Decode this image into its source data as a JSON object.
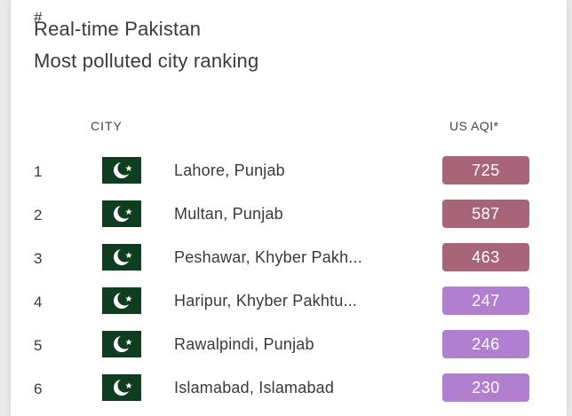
{
  "header": {
    "title_line1": "Real-time Pakistan",
    "title_line2": "Most polluted city ranking"
  },
  "columns": {
    "rank": "#",
    "city": "CITY",
    "aqi": "US AQI*"
  },
  "rows": [
    {
      "rank": "1",
      "city": "Lahore, Punjab",
      "aqi": "725",
      "color": "#a8657a",
      "flag_icon": "pakistan-flag-icon"
    },
    {
      "rank": "2",
      "city": "Multan, Punjab",
      "aqi": "587",
      "color": "#a8657a",
      "flag_icon": "pakistan-flag-icon"
    },
    {
      "rank": "3",
      "city": "Peshawar, Khyber Pakh...",
      "aqi": "463",
      "color": "#a8657a",
      "flag_icon": "pakistan-flag-icon"
    },
    {
      "rank": "4",
      "city": "Haripur, Khyber Pakhtu...",
      "aqi": "247",
      "color": "#b07fcf",
      "flag_icon": "pakistan-flag-icon"
    },
    {
      "rank": "5",
      "city": "Rawalpindi, Punjab",
      "aqi": "246",
      "color": "#b07fcf",
      "flag_icon": "pakistan-flag-icon"
    },
    {
      "rank": "6",
      "city": "Islamabad, Islamabad",
      "aqi": "230",
      "color": "#b07fcf",
      "flag_icon": "pakistan-flag-icon"
    }
  ],
  "colors": {
    "hazardous": "#a8657a",
    "very_unhealthy": "#b07fcf",
    "flag_green": "#0f3d1f"
  }
}
